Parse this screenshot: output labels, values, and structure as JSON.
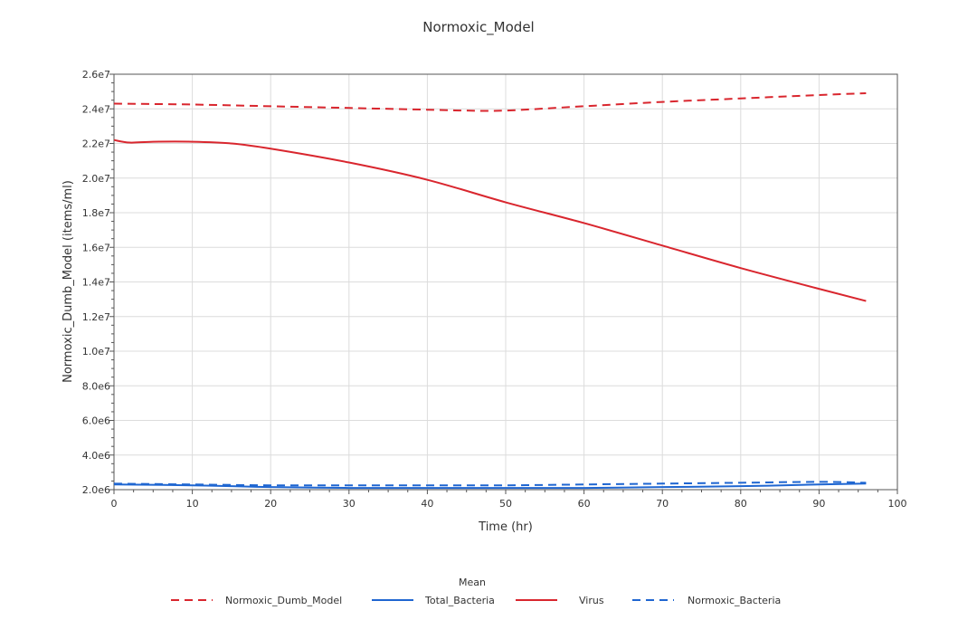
{
  "chart_data": {
    "type": "line",
    "title": "Normoxic_Model",
    "xlabel": "Time (hr)",
    "ylabel": "Normoxic_Dumb_Model (items/ml)",
    "xlim": [
      0,
      100
    ],
    "ylim": [
      2000000,
      26000000
    ],
    "x_ticks": [
      0,
      10,
      20,
      30,
      40,
      50,
      60,
      70,
      80,
      90,
      100
    ],
    "x_tick_labels": [
      "0",
      "10",
      "20",
      "30",
      "40",
      "50",
      "60",
      "70",
      "80",
      "90",
      "100"
    ],
    "y_ticks": [
      2000000,
      4000000,
      6000000,
      8000000,
      10000000,
      12000000,
      14000000,
      16000000,
      18000000,
      20000000,
      22000000,
      24000000,
      26000000
    ],
    "y_tick_labels": [
      "2.0e6",
      "4.0e6",
      "6.0e6",
      "8.0e6",
      "1.0e7",
      "1.2e7",
      "1.4e7",
      "1.6e7",
      "1.8e7",
      "2.0e7",
      "2.2e7",
      "2.4e7",
      "2.6e7"
    ],
    "grid": true,
    "legend": {
      "title": "Mean",
      "position": "bottom"
    },
    "series": [
      {
        "name": "Normoxic_Dumb_Model",
        "color": "#d9262e",
        "dash": "dashed",
        "x": [
          0,
          10,
          20,
          30,
          40,
          45,
          50,
          60,
          70,
          80,
          90,
          96
        ],
        "y": [
          24300000,
          24250000,
          24150000,
          24050000,
          23950000,
          23900000,
          23900000,
          24150000,
          24400000,
          24600000,
          24800000,
          24900000
        ]
      },
      {
        "name": "Total_Bacteria",
        "color": "#1f66d1",
        "dash": "solid",
        "x": [
          0,
          10,
          20,
          30,
          40,
          50,
          60,
          70,
          80,
          90,
          96
        ],
        "y": [
          2300000,
          2250000,
          2150000,
          2100000,
          2100000,
          2100000,
          2100000,
          2150000,
          2200000,
          2300000,
          2350000
        ]
      },
      {
        "name": "Virus",
        "color": "#d9262e",
        "dash": "solid",
        "x": [
          0,
          2,
          5,
          10,
          15,
          20,
          30,
          40,
          50,
          60,
          70,
          80,
          90,
          96
        ],
        "y": [
          22200000,
          22050000,
          22100000,
          22100000,
          22000000,
          21700000,
          20900000,
          19900000,
          18600000,
          17400000,
          16100000,
          14800000,
          13600000,
          12900000
        ]
      },
      {
        "name": "Normoxic_Bacteria",
        "color": "#1f66d1",
        "dash": "dashed",
        "x": [
          0,
          10,
          20,
          30,
          40,
          50,
          60,
          70,
          80,
          90,
          96
        ],
        "y": [
          2350000,
          2300000,
          2250000,
          2250000,
          2250000,
          2250000,
          2300000,
          2350000,
          2400000,
          2450000,
          2400000
        ]
      }
    ]
  }
}
